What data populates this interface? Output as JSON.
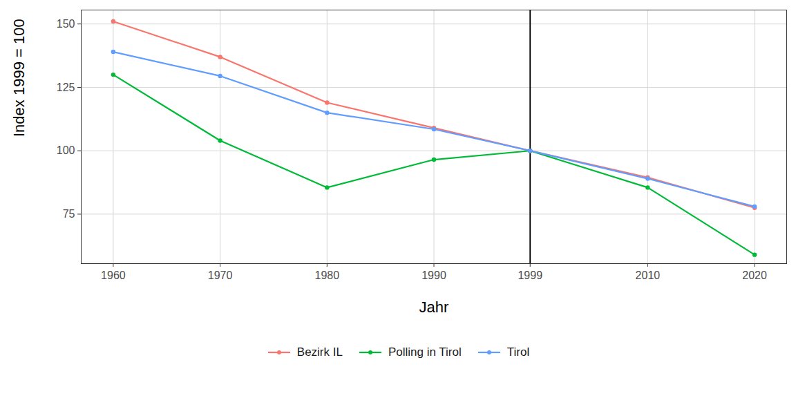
{
  "chart_data": {
    "type": "line",
    "x_label": "Jahr",
    "y_label": "Index 1999 = 100",
    "x": [
      1960,
      1970,
      1980,
      1990,
      1999,
      2010,
      2020
    ],
    "series": [
      {
        "name": "Bezirk IL",
        "color": "#F8766D",
        "values": [
          151,
          137,
          119,
          109,
          100,
          89.5,
          77.5
        ]
      },
      {
        "name": "Polling in Tirol",
        "color": "#00BA38",
        "values": [
          130,
          104,
          85.5,
          96.5,
          100,
          85.5,
          59
        ]
      },
      {
        "name": "Tirol",
        "color": "#619CFF",
        "values": [
          139,
          129.5,
          115,
          108.5,
          100,
          89,
          78
        ]
      }
    ],
    "xlim": [
      1957,
      2023
    ],
    "xticks": [
      1960,
      1970,
      1980,
      1990,
      1999,
      2010,
      2020
    ],
    "ylim": [
      55.5,
      155.5
    ],
    "yticks": [
      75,
      100,
      125,
      150
    ],
    "vline": 1999,
    "grid": true,
    "legend": "bottom",
    "marker": "circle"
  }
}
